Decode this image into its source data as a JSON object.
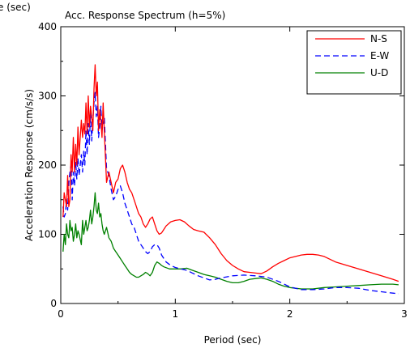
{
  "corner_label": "e (sec)",
  "chart_data": {
    "type": "line",
    "title": "Acc. Response Spectrum (h=5%)",
    "xlabel": "Period (sec)",
    "ylabel": "Acceleration Response (cm/s/s)",
    "xlim": [
      0,
      3
    ],
    "ylim": [
      0,
      400
    ],
    "xticks": [
      0,
      1,
      2,
      3
    ],
    "xtick_labels": [
      "0",
      "1",
      "2",
      "3"
    ],
    "yticks": [
      0,
      100,
      200,
      300,
      400
    ],
    "ytick_labels": [
      "0",
      "100",
      "200",
      "300",
      "400"
    ],
    "grid": false,
    "legend_position": "top-right",
    "series": [
      {
        "name": "N-S",
        "color": "#ff0000",
        "dash": "solid",
        "points": [
          [
            0.02,
            125
          ],
          [
            0.03,
            160
          ],
          [
            0.04,
            150
          ],
          [
            0.05,
            140
          ],
          [
            0.06,
            185
          ],
          [
            0.07,
            140
          ],
          [
            0.08,
            150
          ],
          [
            0.09,
            215
          ],
          [
            0.1,
            190
          ],
          [
            0.11,
            240
          ],
          [
            0.12,
            190
          ],
          [
            0.13,
            230
          ],
          [
            0.14,
            200
          ],
          [
            0.15,
            255
          ],
          [
            0.16,
            215
          ],
          [
            0.18,
            265
          ],
          [
            0.19,
            240
          ],
          [
            0.2,
            260
          ],
          [
            0.21,
            245
          ],
          [
            0.22,
            290
          ],
          [
            0.23,
            245
          ],
          [
            0.24,
            300
          ],
          [
            0.25,
            255
          ],
          [
            0.26,
            285
          ],
          [
            0.27,
            270
          ],
          [
            0.28,
            250
          ],
          [
            0.29,
            310
          ],
          [
            0.3,
            345
          ],
          [
            0.31,
            300
          ],
          [
            0.32,
            320
          ],
          [
            0.33,
            250
          ],
          [
            0.34,
            280
          ],
          [
            0.35,
            265
          ],
          [
            0.36,
            240
          ],
          [
            0.37,
            290
          ],
          [
            0.38,
            250
          ],
          [
            0.4,
            175
          ],
          [
            0.42,
            190
          ],
          [
            0.44,
            175
          ],
          [
            0.46,
            160
          ],
          [
            0.48,
            175
          ],
          [
            0.5,
            180
          ],
          [
            0.52,
            195
          ],
          [
            0.54,
            200
          ],
          [
            0.56,
            190
          ],
          [
            0.58,
            175
          ],
          [
            0.6,
            165
          ],
          [
            0.62,
            160
          ],
          [
            0.64,
            150
          ],
          [
            0.66,
            140
          ],
          [
            0.68,
            130
          ],
          [
            0.7,
            125
          ],
          [
            0.72,
            115
          ],
          [
            0.74,
            110
          ],
          [
            0.76,
            115
          ],
          [
            0.78,
            122
          ],
          [
            0.8,
            125
          ],
          [
            0.82,
            115
          ],
          [
            0.84,
            105
          ],
          [
            0.86,
            100
          ],
          [
            0.88,
            102
          ],
          [
            0.9,
            107
          ],
          [
            0.92,
            112
          ],
          [
            0.96,
            118
          ],
          [
            1.0,
            120
          ],
          [
            1.04,
            121
          ],
          [
            1.08,
            118
          ],
          [
            1.12,
            112
          ],
          [
            1.16,
            107
          ],
          [
            1.2,
            105
          ],
          [
            1.25,
            103
          ],
          [
            1.3,
            95
          ],
          [
            1.35,
            85
          ],
          [
            1.4,
            72
          ],
          [
            1.45,
            62
          ],
          [
            1.5,
            55
          ],
          [
            1.55,
            50
          ],
          [
            1.6,
            46
          ],
          [
            1.65,
            45
          ],
          [
            1.7,
            44
          ],
          [
            1.75,
            43
          ],
          [
            1.8,
            47
          ],
          [
            1.85,
            53
          ],
          [
            1.9,
            58
          ],
          [
            1.95,
            62
          ],
          [
            2.0,
            66
          ],
          [
            2.05,
            68
          ],
          [
            2.1,
            70
          ],
          [
            2.15,
            71
          ],
          [
            2.2,
            71
          ],
          [
            2.25,
            70
          ],
          [
            2.3,
            68
          ],
          [
            2.35,
            64
          ],
          [
            2.4,
            60
          ],
          [
            2.5,
            55
          ],
          [
            2.6,
            50
          ],
          [
            2.7,
            45
          ],
          [
            2.8,
            40
          ],
          [
            2.9,
            35
          ],
          [
            2.95,
            32
          ]
        ]
      },
      {
        "name": "E-W",
        "color": "#0000ff",
        "dash": "dashed",
        "points": [
          [
            0.02,
            140
          ],
          [
            0.03,
            125
          ],
          [
            0.04,
            130
          ],
          [
            0.05,
            150
          ],
          [
            0.06,
            135
          ],
          [
            0.07,
            175
          ],
          [
            0.08,
            190
          ],
          [
            0.09,
            200
          ],
          [
            0.1,
            150
          ],
          [
            0.11,
            190
          ],
          [
            0.12,
            170
          ],
          [
            0.13,
            205
          ],
          [
            0.14,
            180
          ],
          [
            0.15,
            210
          ],
          [
            0.16,
            185
          ],
          [
            0.18,
            215
          ],
          [
            0.19,
            190
          ],
          [
            0.2,
            220
          ],
          [
            0.21,
            200
          ],
          [
            0.22,
            250
          ],
          [
            0.23,
            215
          ],
          [
            0.24,
            260
          ],
          [
            0.25,
            230
          ],
          [
            0.26,
            275
          ],
          [
            0.27,
            235
          ],
          [
            0.28,
            265
          ],
          [
            0.29,
            290
          ],
          [
            0.3,
            305
          ],
          [
            0.31,
            270
          ],
          [
            0.32,
            285
          ],
          [
            0.33,
            240
          ],
          [
            0.34,
            255
          ],
          [
            0.35,
            285
          ],
          [
            0.36,
            250
          ],
          [
            0.38,
            270
          ],
          [
            0.4,
            195
          ],
          [
            0.42,
            185
          ],
          [
            0.44,
            165
          ],
          [
            0.46,
            150
          ],
          [
            0.48,
            155
          ],
          [
            0.5,
            165
          ],
          [
            0.52,
            170
          ],
          [
            0.54,
            160
          ],
          [
            0.56,
            145
          ],
          [
            0.58,
            135
          ],
          [
            0.6,
            125
          ],
          [
            0.62,
            115
          ],
          [
            0.64,
            110
          ],
          [
            0.66,
            100
          ],
          [
            0.68,
            90
          ],
          [
            0.7,
            85
          ],
          [
            0.72,
            80
          ],
          [
            0.74,
            75
          ],
          [
            0.76,
            72
          ],
          [
            0.78,
            75
          ],
          [
            0.8,
            82
          ],
          [
            0.82,
            85
          ],
          [
            0.84,
            85
          ],
          [
            0.86,
            80
          ],
          [
            0.88,
            70
          ],
          [
            0.9,
            65
          ],
          [
            0.92,
            60
          ],
          [
            0.96,
            55
          ],
          [
            1.0,
            52
          ],
          [
            1.05,
            50
          ],
          [
            1.1,
            48
          ],
          [
            1.15,
            44
          ],
          [
            1.2,
            40
          ],
          [
            1.25,
            37
          ],
          [
            1.3,
            34
          ],
          [
            1.35,
            35
          ],
          [
            1.4,
            37
          ],
          [
            1.5,
            40
          ],
          [
            1.6,
            41
          ],
          [
            1.7,
            40
          ],
          [
            1.8,
            38
          ],
          [
            1.9,
            32
          ],
          [
            2.0,
            24
          ],
          [
            2.1,
            20
          ],
          [
            2.2,
            20
          ],
          [
            2.3,
            21
          ],
          [
            2.4,
            23
          ],
          [
            2.5,
            23
          ],
          [
            2.6,
            22
          ],
          [
            2.7,
            19
          ],
          [
            2.8,
            17
          ],
          [
            2.9,
            15
          ],
          [
            2.95,
            14
          ]
        ]
      },
      {
        "name": "U-D",
        "color": "#008000",
        "dash": "solid",
        "points": [
          [
            0.02,
            75
          ],
          [
            0.03,
            100
          ],
          [
            0.04,
            85
          ],
          [
            0.05,
            115
          ],
          [
            0.06,
            100
          ],
          [
            0.07,
            95
          ],
          [
            0.08,
            120
          ],
          [
            0.09,
            105
          ],
          [
            0.1,
            110
          ],
          [
            0.11,
            90
          ],
          [
            0.12,
            100
          ],
          [
            0.13,
            115
          ],
          [
            0.14,
            95
          ],
          [
            0.15,
            105
          ],
          [
            0.16,
            100
          ],
          [
            0.18,
            85
          ],
          [
            0.19,
            120
          ],
          [
            0.2,
            100
          ],
          [
            0.21,
            110
          ],
          [
            0.22,
            120
          ],
          [
            0.23,
            105
          ],
          [
            0.24,
            110
          ],
          [
            0.25,
            120
          ],
          [
            0.26,
            135
          ],
          [
            0.27,
            115
          ],
          [
            0.28,
            125
          ],
          [
            0.29,
            140
          ],
          [
            0.3,
            160
          ],
          [
            0.31,
            135
          ],
          [
            0.32,
            130
          ],
          [
            0.33,
            145
          ],
          [
            0.34,
            125
          ],
          [
            0.35,
            130
          ],
          [
            0.36,
            115
          ],
          [
            0.37,
            105
          ],
          [
            0.38,
            100
          ],
          [
            0.4,
            110
          ],
          [
            0.42,
            95
          ],
          [
            0.44,
            90
          ],
          [
            0.46,
            80
          ],
          [
            0.48,
            75
          ],
          [
            0.5,
            70
          ],
          [
            0.52,
            65
          ],
          [
            0.54,
            60
          ],
          [
            0.56,
            55
          ],
          [
            0.58,
            50
          ],
          [
            0.6,
            45
          ],
          [
            0.62,
            42
          ],
          [
            0.64,
            40
          ],
          [
            0.66,
            38
          ],
          [
            0.68,
            38
          ],
          [
            0.7,
            40
          ],
          [
            0.72,
            42
          ],
          [
            0.74,
            45
          ],
          [
            0.76,
            43
          ],
          [
            0.78,
            40
          ],
          [
            0.8,
            45
          ],
          [
            0.82,
            55
          ],
          [
            0.84,
            60
          ],
          [
            0.86,
            58
          ],
          [
            0.88,
            55
          ],
          [
            0.9,
            53
          ],
          [
            0.95,
            50
          ],
          [
            1.0,
            50
          ],
          [
            1.05,
            50
          ],
          [
            1.1,
            51
          ],
          [
            1.15,
            48
          ],
          [
            1.2,
            45
          ],
          [
            1.25,
            42
          ],
          [
            1.3,
            40
          ],
          [
            1.35,
            38
          ],
          [
            1.4,
            35
          ],
          [
            1.45,
            32
          ],
          [
            1.5,
            30
          ],
          [
            1.55,
            30
          ],
          [
            1.6,
            32
          ],
          [
            1.65,
            35
          ],
          [
            1.7,
            36
          ],
          [
            1.75,
            37
          ],
          [
            1.8,
            35
          ],
          [
            1.85,
            32
          ],
          [
            1.9,
            28
          ],
          [
            1.95,
            25
          ],
          [
            2.0,
            23
          ],
          [
            2.05,
            22
          ],
          [
            2.1,
            21
          ],
          [
            2.2,
            21
          ],
          [
            2.3,
            23
          ],
          [
            2.4,
            24
          ],
          [
            2.5,
            25
          ],
          [
            2.6,
            26
          ],
          [
            2.7,
            27
          ],
          [
            2.8,
            28
          ],
          [
            2.9,
            28
          ],
          [
            2.95,
            27
          ]
        ]
      }
    ]
  }
}
